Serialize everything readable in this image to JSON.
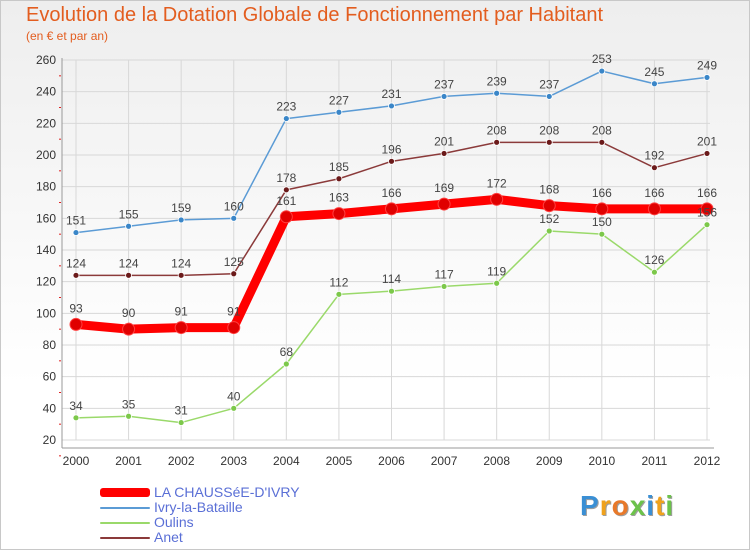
{
  "title": "Evolution de la Dotation Globale de Fonctionnement par Habitant",
  "subtitle": "(en € et par an)",
  "logo": {
    "text": "Proxiti",
    "letters": [
      {
        "ch": "P",
        "color": "#3a8fd4"
      },
      {
        "ch": "r",
        "color": "#f0a21c"
      },
      {
        "ch": "o",
        "color": "#e8792a"
      },
      {
        "ch": "x",
        "color": "#6cc24a"
      },
      {
        "ch": "i",
        "color": "#3a8fd4"
      },
      {
        "ch": "t",
        "color": "#f0a21c"
      },
      {
        "ch": "i",
        "color": "#6cc24a"
      }
    ]
  },
  "chart_data": {
    "type": "line",
    "title": "Evolution de la Dotation Globale de Fonctionnement par Habitant",
    "subtitle": "(en € et par an)",
    "xlabel": "",
    "ylabel": "",
    "ylim": [
      20,
      260
    ],
    "yticks": [
      20,
      40,
      60,
      80,
      100,
      120,
      140,
      160,
      180,
      200,
      220,
      240,
      260
    ],
    "grid": true,
    "legend_position": "bottom-left",
    "categories": [
      "2000",
      "2001",
      "2002",
      "2003",
      "2004",
      "2005",
      "2006",
      "2007",
      "2008",
      "2009",
      "2010",
      "2011",
      "2012"
    ],
    "series": [
      {
        "name": "Ivry-la-Bataille",
        "color": "#5b9bd5",
        "dot": "#3a86c8",
        "width": 1.5,
        "values": [
          151,
          155,
          159,
          160,
          223,
          227,
          231,
          237,
          239,
          237,
          253,
          245,
          249
        ]
      },
      {
        "name": "Oulins",
        "color": "#9ad96a",
        "dot": "#7cc84a",
        "width": 1.5,
        "values": [
          34,
          35,
          31,
          40,
          68,
          112,
          114,
          117,
          119,
          152,
          150,
          126,
          156
        ]
      },
      {
        "name": "Anet",
        "color": "#8b3a3a",
        "dot": "#6b1a1a",
        "width": 1.5,
        "values": [
          124,
          124,
          124,
          125,
          178,
          185,
          196,
          201,
          208,
          208,
          208,
          192,
          201
        ]
      },
      {
        "name": "LA CHAUSSéE-D'IVRY",
        "color": "#ff0000",
        "dot": "#e00000",
        "width": 9,
        "values": [
          93,
          90,
          91,
          91,
          161,
          163,
          166,
          169,
          172,
          168,
          166,
          166,
          166
        ]
      }
    ],
    "legend_order": [
      "LA CHAUSSéE-D'IVRY",
      "Ivry-la-Bataille",
      "Oulins",
      "Anet"
    ]
  }
}
